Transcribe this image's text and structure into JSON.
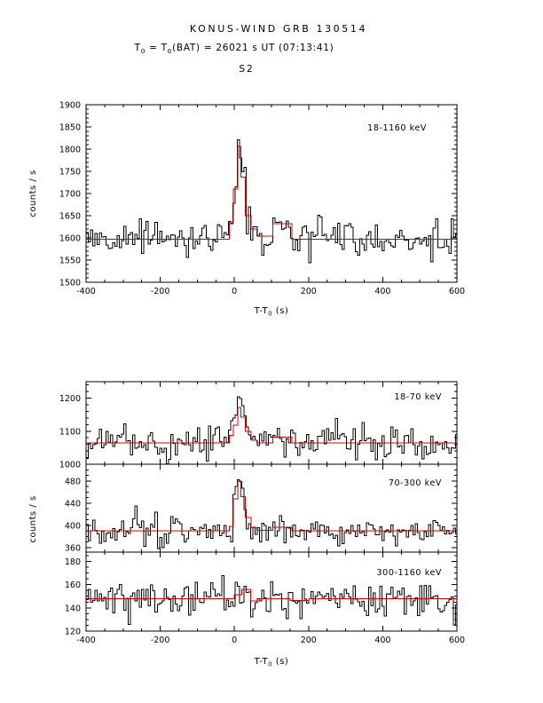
{
  "header": {
    "title": "KONUS-WIND GRB 130514",
    "subtitle": "T_0 = T_0(BAT) = 26021 s UT (07:13:41)",
    "detector": "S2"
  },
  "chart_data": {
    "type": "line",
    "subtype": "histogram-light-curves",
    "title": "KONUS-WIND GRB 130514",
    "xlabel": "T-T_0 (s)",
    "ylabel": "counts / s",
    "x_range": [
      -400,
      600
    ],
    "x_ticks": [
      -400,
      -200,
      0,
      200,
      400,
      600
    ],
    "x_minor_step": 50,
    "bin_width_s": 6,
    "noise_seed": 20130514,
    "grid": false,
    "legend_position": "none",
    "colors": {
      "data": "#000000",
      "model": "#dd0000",
      "background": "#ffffff"
    },
    "panels": [
      {
        "label": "18-1160 keV",
        "ylim": [
          1500,
          1900
        ],
        "yticks": [
          1500,
          1550,
          1600,
          1650,
          1700,
          1750,
          1800,
          1850,
          1900
        ],
        "y_minor_step": 10,
        "baseline": 1597,
        "noise_sigma": 19,
        "peak_value": 1840,
        "peak_time_s": 15,
        "model_segments": [
          [
            -400,
            -14,
            1597
          ],
          [
            -14,
            -3,
            1634
          ],
          [
            -3,
            9,
            1710
          ],
          [
            9,
            18,
            1806
          ],
          [
            18,
            30,
            1737
          ],
          [
            30,
            45,
            1650
          ],
          [
            45,
            60,
            1620
          ],
          [
            60,
            104,
            1604
          ],
          [
            104,
            155,
            1632
          ],
          [
            155,
            600,
            1597
          ]
        ]
      },
      {
        "label": "18-70 keV",
        "ylim": [
          1000,
          1250
        ],
        "yticks": [
          1000,
          1100,
          1200
        ],
        "y_minor_step": 20,
        "baseline": 1064,
        "noise_sigma": 24,
        "peak_value": 1195,
        "peak_time_s": 15,
        "model_segments": [
          [
            -400,
            -14,
            1064
          ],
          [
            -14,
            -3,
            1088
          ],
          [
            -3,
            9,
            1118
          ],
          [
            9,
            18,
            1172
          ],
          [
            18,
            30,
            1142
          ],
          [
            30,
            45,
            1100
          ],
          [
            45,
            60,
            1072
          ],
          [
            60,
            104,
            1065
          ],
          [
            104,
            155,
            1082
          ],
          [
            155,
            600,
            1064
          ]
        ]
      },
      {
        "label": "70-300 keV",
        "ylim": [
          352,
          510
        ],
        "yticks": [
          360,
          400,
          440,
          480
        ],
        "y_minor_step": 10,
        "baseline": 390,
        "noise_sigma": 13,
        "peak_value": 482,
        "peak_time_s": 15,
        "model_segments": [
          [
            -400,
            -14,
            390
          ],
          [
            -14,
            -3,
            398
          ],
          [
            -3,
            9,
            448
          ],
          [
            9,
            18,
            480
          ],
          [
            18,
            30,
            452
          ],
          [
            30,
            45,
            414
          ],
          [
            45,
            60,
            396
          ],
          [
            60,
            104,
            391
          ],
          [
            104,
            155,
            397
          ],
          [
            155,
            600,
            390
          ]
        ]
      },
      {
        "label": "300-1160 keV",
        "ylim": [
          120,
          188
        ],
        "yticks": [
          120,
          140,
          160,
          180
        ],
        "y_minor_step": 5,
        "baseline": 148,
        "noise_sigma": 7,
        "peak_value": 168,
        "peak_time_s": 25,
        "model_segments": [
          [
            -400,
            0,
            148
          ],
          [
            0,
            20,
            151.5
          ],
          [
            20,
            44,
            156
          ],
          [
            44,
            68,
            146
          ],
          [
            68,
            150,
            148
          ],
          [
            150,
            200,
            146.5
          ],
          [
            200,
            600,
            148
          ]
        ]
      }
    ]
  }
}
